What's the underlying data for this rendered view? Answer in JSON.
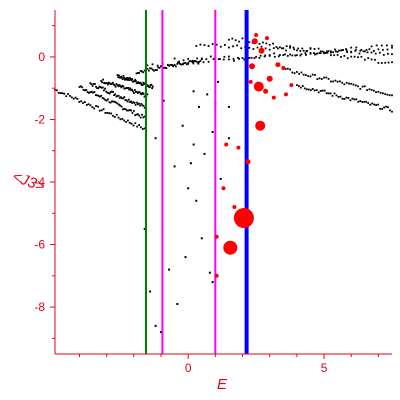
{
  "chart_data": {
    "type": "scatter",
    "xlabel": "E",
    "ylabel": "<J3>",
    "xlim": [
      -4.9,
      7.5
    ],
    "ylim": [
      -9.5,
      1.5
    ],
    "x_ticks": [
      0,
      5
    ],
    "y_ticks": [
      0,
      -2,
      -4,
      -6,
      -8
    ],
    "axis_color": "#e8001c",
    "vertical_lines": [
      {
        "x": -1.55,
        "color": "#008000"
      },
      {
        "x": -0.95,
        "color": "#ff00ff"
      },
      {
        "x": 1.0,
        "color": "#ff00ff"
      },
      {
        "x": 2.15,
        "color": "#0000ff"
      }
    ],
    "band_series": [
      {
        "x_start": -4.9,
        "y_start": -1.05,
        "x_end": -1.6,
        "y_end": -2.3
      },
      {
        "x_start": -4.0,
        "y_start": -0.95,
        "x_end": -1.6,
        "y_end": -1.95
      },
      {
        "x_start": -3.6,
        "y_start": -0.85,
        "x_end": -1.6,
        "y_end": -1.6
      },
      {
        "x_start": -3.2,
        "y_start": -0.75,
        "x_end": -1.5,
        "y_end": -1.25
      },
      {
        "x_start": -2.6,
        "y_start": -0.6,
        "x_end": -1.3,
        "y_end": -0.95
      },
      {
        "x_start": -1.9,
        "y_start": -0.5,
        "x_end": 0.5,
        "y_end": -0.1
      },
      {
        "x_start": -1.5,
        "y_start": -0.3,
        "x_end": 7.5,
        "y_end": 0.35
      },
      {
        "x_start": -0.5,
        "y_start": -0.1,
        "x_end": 7.5,
        "y_end": 0.25
      },
      {
        "x_start": 0.3,
        "y_start": 0.4,
        "x_end": 7.5,
        "y_end": 0.1
      },
      {
        "x_start": 1.5,
        "y_start": 0.6,
        "x_end": 7.5,
        "y_end": -0.2
      },
      {
        "x_start": 3.5,
        "y_start": -0.4,
        "x_end": 7.5,
        "y_end": -1.2
      },
      {
        "x_start": 4.0,
        "y_start": -0.9,
        "x_end": 7.5,
        "y_end": -1.7
      }
    ],
    "scatter_points": [
      [
        -1.6,
        -5.5
      ],
      [
        -1.4,
        -7.5
      ],
      [
        -1.2,
        -8.6
      ],
      [
        -1.0,
        -8.8
      ],
      [
        -0.7,
        -6.8
      ],
      [
        -0.4,
        -7.9
      ],
      [
        -0.1,
        -6.4
      ],
      [
        -0.5,
        -3.5
      ],
      [
        0.0,
        -4.2
      ],
      [
        0.3,
        -4.6
      ],
      [
        0.5,
        -5.8
      ],
      [
        0.8,
        -6.9
      ],
      [
        0.2,
        -2.8
      ],
      [
        0.6,
        -3.1
      ],
      [
        1.2,
        -3.9
      ],
      [
        -0.2,
        -2.2
      ],
      [
        0.4,
        -1.6
      ],
      [
        0.9,
        -2.4
      ],
      [
        1.5,
        -2.6
      ],
      [
        -0.9,
        -1.4
      ],
      [
        1.1,
        -0.8
      ],
      [
        0.7,
        -1.2
      ],
      [
        -1.2,
        -2.6
      ],
      [
        0.1,
        -3.4
      ],
      [
        0.9,
        -7.2
      ],
      [
        1.0,
        -1.5
      ],
      [
        1.5,
        -1.6
      ],
      [
        0.2,
        -1.1
      ]
    ],
    "red_points": [
      {
        "x": 2.05,
        "y": -5.15,
        "size": 10
      },
      {
        "x": 1.55,
        "y": -6.1,
        "size": 7
      },
      {
        "x": 2.65,
        "y": -2.2,
        "size": 5
      },
      {
        "x": 2.6,
        "y": -0.95,
        "size": 5
      },
      {
        "x": 2.45,
        "y": 0.5,
        "size": 3
      },
      {
        "x": 2.7,
        "y": 0.2,
        "size": 3
      },
      {
        "x": 2.35,
        "y": -0.3,
        "size": 3
      },
      {
        "x": 3.0,
        "y": -0.7,
        "size": 3
      },
      {
        "x": 2.85,
        "y": -1.1,
        "size": 2.5
      },
      {
        "x": 3.3,
        "y": -0.25,
        "size": 2.5
      },
      {
        "x": 2.2,
        "y": -3.35,
        "size": 2.5
      },
      {
        "x": 1.85,
        "y": -2.9,
        "size": 2
      },
      {
        "x": 1.3,
        "y": -4.2,
        "size": 2
      },
      {
        "x": 1.7,
        "y": -4.8,
        "size": 2
      },
      {
        "x": 1.05,
        "y": -7.0,
        "size": 2
      },
      {
        "x": 1.05,
        "y": -5.75,
        "size": 2
      },
      {
        "x": 3.6,
        "y": -1.2,
        "size": 2
      },
      {
        "x": 3.15,
        "y": -1.3,
        "size": 2
      },
      {
        "x": 3.8,
        "y": -0.9,
        "size": 2
      },
      {
        "x": 1.4,
        "y": -2.8,
        "size": 2
      },
      {
        "x": 2.9,
        "y": 0.6,
        "size": 2
      },
      {
        "x": 2.5,
        "y": 0.7,
        "size": 2
      },
      {
        "x": 3.5,
        "y": -0.35,
        "size": 2
      },
      {
        "x": 2.3,
        "y": -0.8,
        "size": 2
      }
    ]
  }
}
